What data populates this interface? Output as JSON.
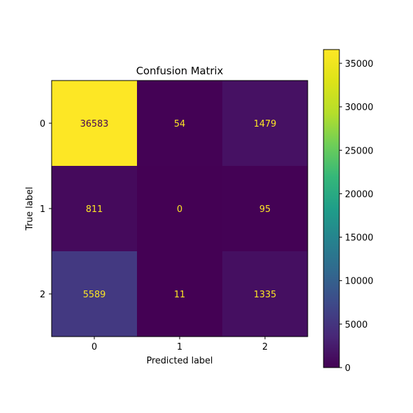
{
  "chart_data": {
    "type": "heatmap",
    "title": "Confusion Matrix",
    "xlabel": "Predicted label",
    "ylabel": "True label",
    "x_categories": [
      "0",
      "1",
      "2"
    ],
    "y_categories": [
      "0",
      "1",
      "2"
    ],
    "values": [
      [
        36583,
        54,
        1479
      ],
      [
        811,
        0,
        95
      ],
      [
        5589,
        11,
        1335
      ]
    ],
    "colormap": "viridis",
    "colorbar": {
      "range": [
        0,
        36583
      ],
      "ticks": [
        0,
        5000,
        10000,
        15000,
        20000,
        25000,
        30000,
        35000
      ],
      "tick_labels": [
        "0",
        "5000",
        "10000",
        "15000",
        "20000",
        "25000",
        "30000",
        "35000"
      ]
    },
    "text_colors": {
      "on_light": "#440154",
      "on_dark": "#fde725"
    },
    "grid": false
  }
}
